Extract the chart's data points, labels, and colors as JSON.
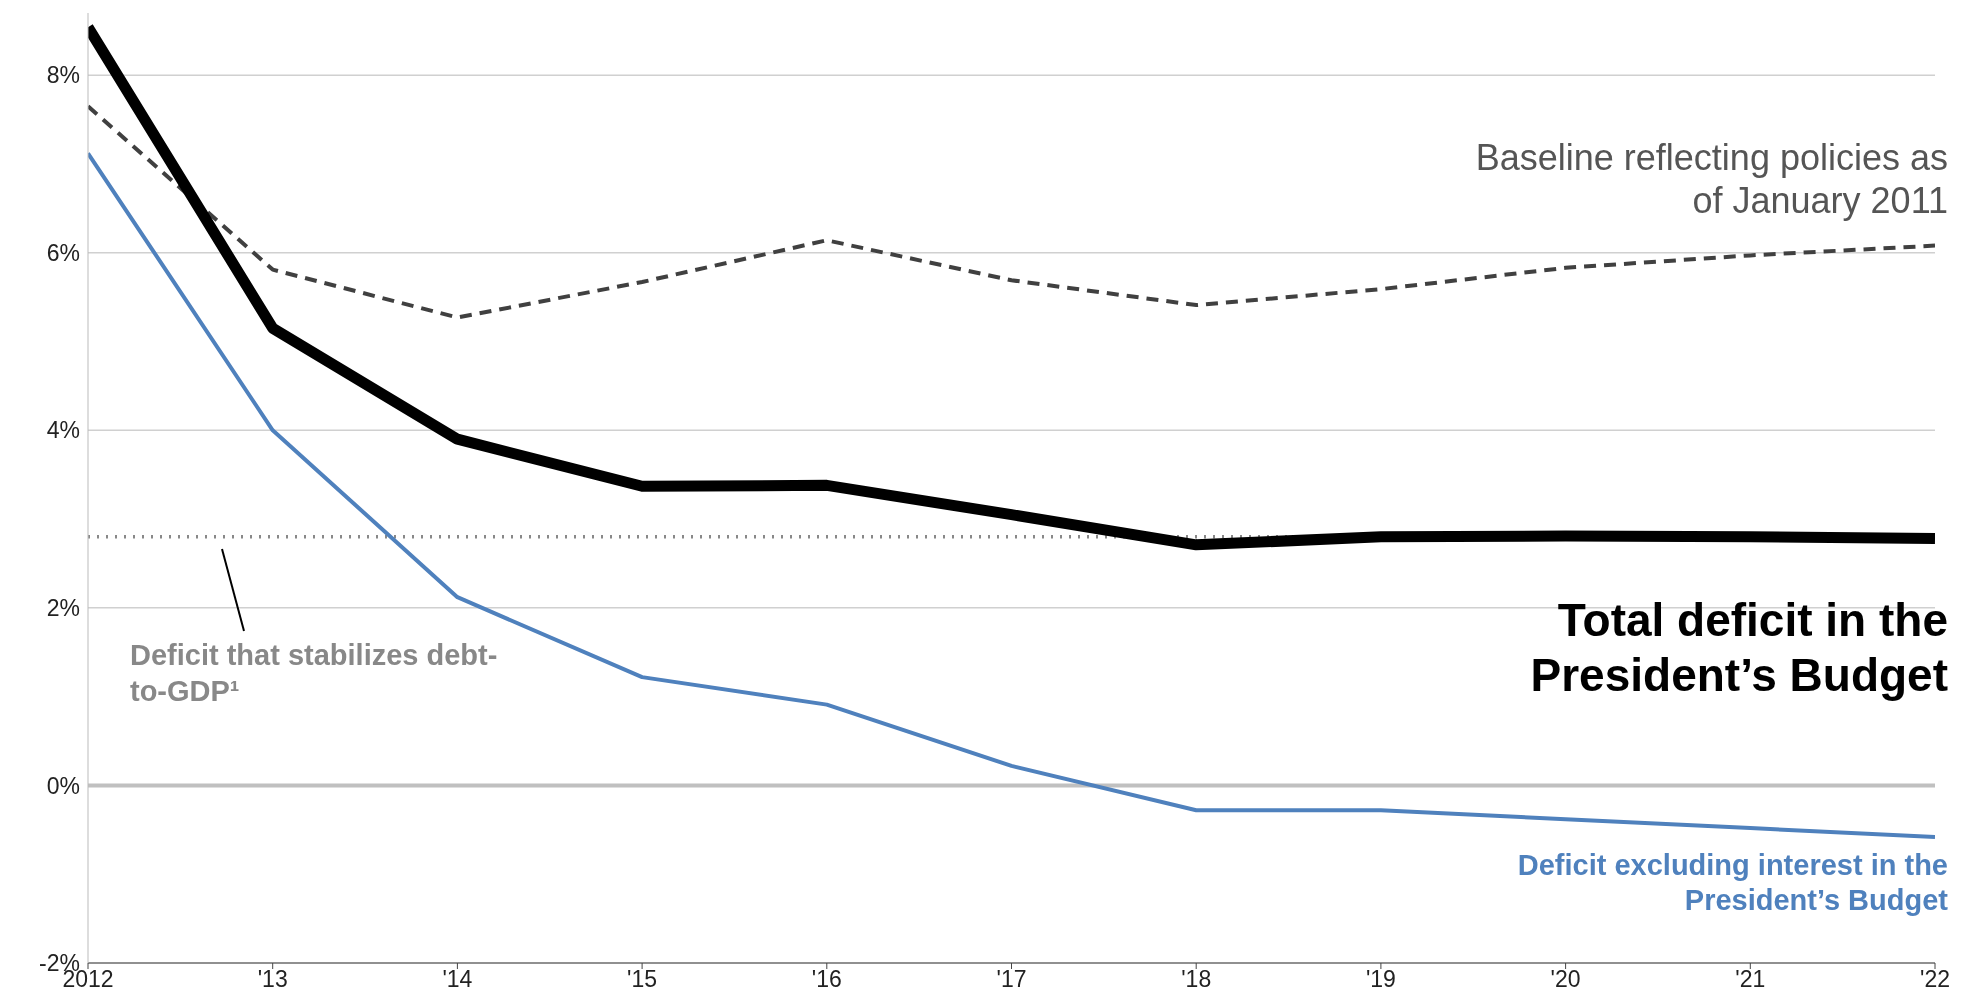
{
  "chart_data": {
    "type": "line",
    "x": [
      2012,
      2013,
      2014,
      2015,
      2016,
      2017,
      2018,
      2019,
      2020,
      2021,
      2022
    ],
    "xlim": [
      2012,
      2022
    ],
    "xticks": [
      {
        "value": 2012,
        "label": "2012"
      },
      {
        "value": 2013,
        "label": "'13"
      },
      {
        "value": 2014,
        "label": "'14"
      },
      {
        "value": 2015,
        "label": "'15"
      },
      {
        "value": 2016,
        "label": "'16"
      },
      {
        "value": 2017,
        "label": "'17"
      },
      {
        "value": 2018,
        "label": "'18"
      },
      {
        "value": 2019,
        "label": "'19"
      },
      {
        "value": 2020,
        "label": "'20"
      },
      {
        "value": 2021,
        "label": "'21"
      },
      {
        "value": 2022,
        "label": "'22"
      }
    ],
    "ylim": [
      -2,
      8.7
    ],
    "yticks": [
      {
        "value": -2,
        "label": "-2%"
      },
      {
        "value": 0,
        "label": "0%"
      },
      {
        "value": 2,
        "label": "2%"
      },
      {
        "value": 4,
        "label": "4%"
      },
      {
        "value": 6,
        "label": "6%"
      },
      {
        "value": 8,
        "label": "8%"
      }
    ],
    "grid": "y",
    "marker": "none",
    "series": [
      {
        "name": "Baseline reflecting policies as of January 2011",
        "color": "#404040",
        "line_style": "dashed",
        "values": [
          7.65,
          5.81,
          5.27,
          5.67,
          6.14,
          5.69,
          5.41,
          5.59,
          5.83,
          5.97,
          6.08
        ]
      },
      {
        "name": "Deficit excluding interest in the President’s Budget",
        "color": "#4f81bd",
        "line_style": "solid",
        "values": [
          7.12,
          4.0,
          2.12,
          1.22,
          0.91,
          0.22,
          -0.28,
          -0.28,
          -0.38,
          -0.48,
          -0.58
        ]
      },
      {
        "name": "Total deficit in the President’s Budget",
        "color": "#000000",
        "line_style": "solid",
        "values": [
          8.54,
          5.15,
          3.9,
          3.37,
          3.38,
          3.05,
          2.71,
          2.8,
          2.81,
          2.8,
          2.78
        ]
      }
    ],
    "ref_lines": [
      {
        "axis": "y",
        "value": 2.8,
        "label": "Deficit that stabilizes debt-to-GDP¹",
        "color": "#888888",
        "line_style": "dotted"
      }
    ]
  }
}
